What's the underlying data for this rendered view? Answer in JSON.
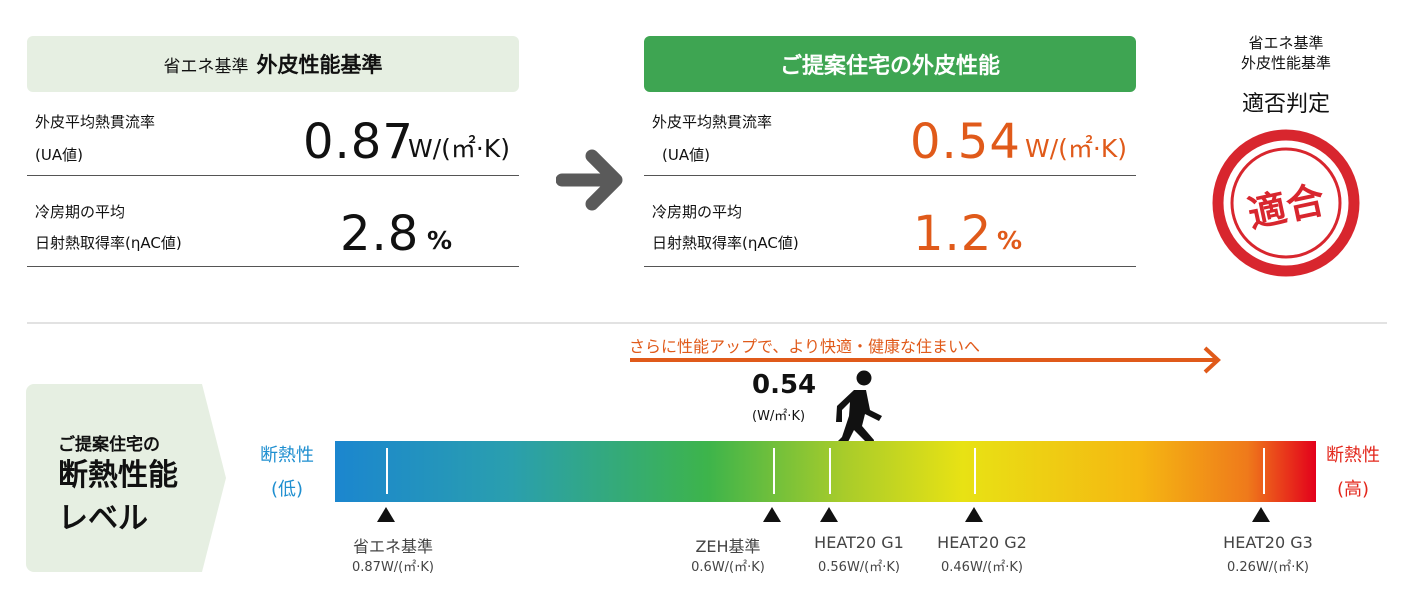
{
  "standard": {
    "title_sub": "省エネ基準",
    "title_main": "外皮性能基準",
    "ua_label_1": "外皮平均熱貫流率",
    "ua_label_2": "(UA値)",
    "ua_value": "0.87",
    "ua_unit": "W/(㎡·K)",
    "eta_label_1": "冷房期の平均",
    "eta_label_2": "日射熱取得率(ηAC値)",
    "eta_value": "2.8",
    "eta_unit": "%"
  },
  "proposal": {
    "title": "ご提案住宅の外皮性能",
    "ua_label_1": "外皮平均熱貫流率",
    "ua_label_2": "(UA値)",
    "ua_value": "0.54",
    "ua_unit": "W/(㎡·K)",
    "eta_label_1": "冷房期の平均",
    "eta_label_2": "日射熱取得率(ηAC値)",
    "eta_value": "1.2",
    "eta_unit": "%"
  },
  "judgement": {
    "line1": "省エネ基準",
    "line2": "外皮性能基準",
    "title": "適否判定",
    "stamp": "適合"
  },
  "level": {
    "label_1": "ご提案住宅の",
    "label_2": "断熱性能",
    "label_3": "レベル",
    "upgrade_text": "さらに性能アップで、より快適・健康な住まいへ",
    "current_value": "0.54",
    "current_unit": "(W/㎡·K)",
    "low_label_1": "断熱性",
    "low_label_2": "(低)",
    "high_label_1": "断熱性",
    "high_label_2": "(高)",
    "markers": [
      {
        "name": "省エネ基準",
        "value": "0.87W/(㎡·K)"
      },
      {
        "name": "ZEH基準",
        "value": "0.6W/(㎡·K)"
      },
      {
        "name": "HEAT20 G1",
        "value": "0.56W/(㎡·K)"
      },
      {
        "name": "HEAT20 G2",
        "value": "0.46W/(㎡·K)"
      },
      {
        "name": "HEAT20 G3",
        "value": "0.26W/(㎡·K)"
      }
    ]
  },
  "colors": {
    "accent_green": "#3ea552",
    "accent_orange": "#e05a1a",
    "stamp_red": "#d8262e"
  },
  "icons": [
    "arrow-right-icon",
    "walking-person-icon",
    "stamp-icon"
  ]
}
